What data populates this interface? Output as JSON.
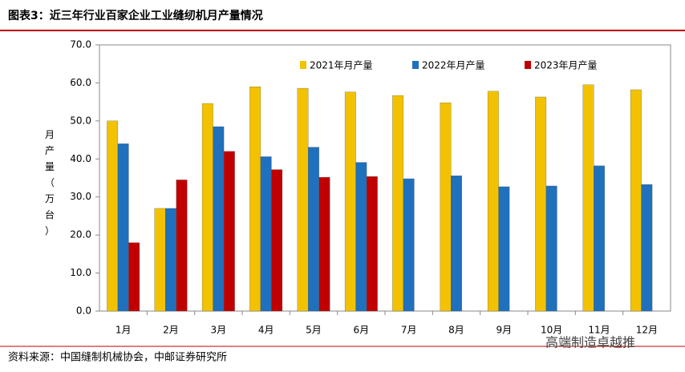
{
  "chart_data": {
    "type": "bar",
    "title": "图表3：近三年行业百家企业工业缝纫机月产量情况",
    "source": "资料来源：中国缝制机械协会，中邮证券研究所",
    "watermark": "高端制造卓越推",
    "y_label": "月产量（万台）",
    "categories": [
      "1月",
      "2月",
      "3月",
      "4月",
      "5月",
      "6月",
      "7月",
      "8月",
      "9月",
      "10月",
      "11月",
      "12月"
    ],
    "series": [
      {
        "name": "2021年月产量",
        "color": "#f2c200",
        "values": [
          50.0,
          27.0,
          54.6,
          59.0,
          58.6,
          57.6,
          56.7,
          54.8,
          57.8,
          56.3,
          59.5,
          58.2
        ]
      },
      {
        "name": "2022年月产量",
        "color": "#1f70bd",
        "values": [
          44.0,
          27.0,
          48.5,
          40.6,
          43.1,
          39.1,
          34.8,
          35.6,
          32.7,
          32.9,
          38.2,
          33.3
        ]
      },
      {
        "name": "2023年月产量",
        "color": "#c00000",
        "values": [
          18.0,
          34.5,
          42.0,
          37.2,
          35.2,
          35.4,
          null,
          null,
          null,
          null,
          null,
          null
        ]
      }
    ],
    "ylim": [
      0,
      70
    ],
    "yticks": [
      {
        "value": 0,
        "label": "0.0"
      },
      {
        "value": 10,
        "label": "10.0"
      },
      {
        "value": 20,
        "label": "20.0"
      },
      {
        "value": 30,
        "label": "30.0"
      },
      {
        "value": 40,
        "label": "40.0"
      },
      {
        "value": 50,
        "label": "50.0"
      },
      {
        "value": 60,
        "label": "60.0"
      },
      {
        "value": 70,
        "label": "70.0"
      }
    ],
    "legend": "top"
  }
}
